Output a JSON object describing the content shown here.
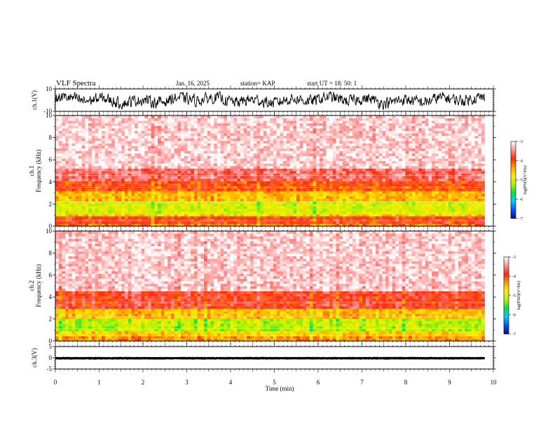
{
  "header": {
    "title": "VLF Spectra",
    "date": "Jan. 16, 2025",
    "station": "station= KAP",
    "start": "start UT =   18: 50: 1"
  },
  "colors": {
    "background": "#ffffff",
    "axes": "#000000",
    "waveform": "#000000",
    "colormap": [
      "#0a0a9a",
      "#0050ff",
      "#00c8ff",
      "#00e050",
      "#b4f000",
      "#ffee00",
      "#ff9c00",
      "#ff2a10",
      "#ff9494",
      "#ffffff"
    ]
  },
  "chart_data": [
    {
      "id": "ch1-waveform",
      "type": "line",
      "ylabel": "ch.1(V)",
      "ylim": [
        -10,
        10
      ],
      "yticks": [
        "10",
        "-10"
      ],
      "xlim": [
        0,
        10
      ],
      "x_extent": [
        0,
        9.8
      ],
      "approx_range": [
        -7,
        7
      ],
      "series_note": "dense noise-like signal"
    },
    {
      "id": "ch1-spectrogram",
      "type": "heatmap",
      "ylabel": "ch.1\nFrequency (kHz)",
      "ylim": [
        0,
        10
      ],
      "yticks": [
        "0",
        "2",
        "4",
        "6",
        "8",
        "10"
      ],
      "xlim": [
        0,
        10
      ],
      "x_extent": [
        0,
        9.8
      ],
      "colorbar": {
        "title": "log(PSD)(V²/Hz)",
        "range": [
          -7,
          -3
        ],
        "ticks": [
          "-3",
          "-4",
          "-5",
          "-6",
          "-7"
        ]
      },
      "band_profile_khz": [
        {
          "f": [
            0.0,
            0.3
          ],
          "level": -4.2
        },
        {
          "f": [
            0.3,
            0.8
          ],
          "level": -3.9
        },
        {
          "f": [
            0.8,
            1.2
          ],
          "level": -4.6
        },
        {
          "f": [
            1.2,
            2.2
          ],
          "level": -5.0
        },
        {
          "f": [
            2.2,
            3.2
          ],
          "level": -4.5
        },
        {
          "f": [
            3.2,
            4.0
          ],
          "level": -4.0
        },
        {
          "f": [
            4.0,
            5.2
          ],
          "level": -3.6
        },
        {
          "f": [
            5.2,
            10.0
          ],
          "level": -3.2
        }
      ]
    },
    {
      "id": "ch2-spectrogram",
      "type": "heatmap",
      "ylabel": "ch.2\nFrequency (kHz)",
      "ylim": [
        0,
        10
      ],
      "yticks": [
        "0",
        "2",
        "4",
        "6",
        "8",
        "10"
      ],
      "xlim": [
        0,
        10
      ],
      "x_extent": [
        0,
        9.8
      ],
      "colorbar": {
        "title": "log(PSD)(V²/Hz)",
        "range": [
          -7,
          -3
        ],
        "ticks": [
          "-3",
          "-4",
          "-5",
          "-6",
          "-7"
        ]
      },
      "band_profile_khz": [
        {
          "f": [
            0.0,
            0.5
          ],
          "level": -4.3
        },
        {
          "f": [
            0.5,
            0.9
          ],
          "level": -4.6
        },
        {
          "f": [
            0.9,
            2.0
          ],
          "level": -5.1
        },
        {
          "f": [
            2.0,
            3.0
          ],
          "level": -4.5
        },
        {
          "f": [
            3.0,
            4.5
          ],
          "level": -3.8
        },
        {
          "f": [
            4.5,
            10.0
          ],
          "level": -3.2
        }
      ]
    },
    {
      "id": "ch3-waveform",
      "type": "line",
      "ylabel": "ch.3(V)",
      "ylim": [
        -5,
        5
      ],
      "yticks": [
        "5",
        "0",
        "-5"
      ],
      "xlim": [
        0,
        10
      ],
      "x_extent": [
        0,
        9.8
      ],
      "approx_range": [
        -0.6,
        0.6
      ],
      "series_note": "dense band near -0.2 V",
      "center": -0.2,
      "xlabel": "Time (min)",
      "xticks": [
        "0",
        "1",
        "2",
        "3",
        "4",
        "5",
        "6",
        "7",
        "8",
        "9",
        "10"
      ]
    }
  ]
}
